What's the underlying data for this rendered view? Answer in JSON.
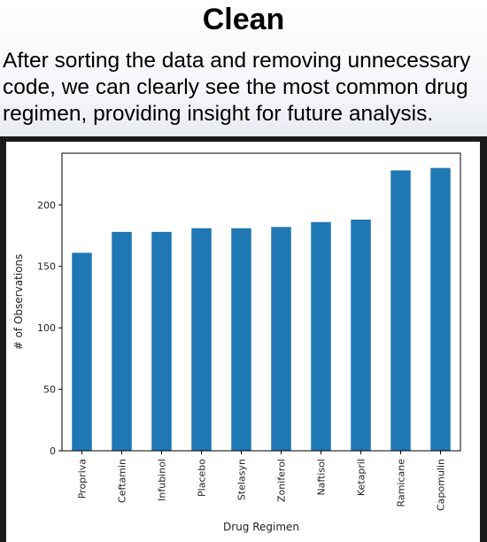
{
  "page": {
    "title": "Clean",
    "description": "After sorting the data and removing unnecessary code, we can clearly see the most common drug regimen, providing insight for future analysis."
  },
  "colors": {
    "bar": "#1f77b4",
    "axis": "#000000",
    "frame": "#1a1a1a"
  },
  "chart_data": {
    "type": "bar",
    "categories": [
      "Propriva",
      "Ceftamin",
      "Infubinol",
      "Placebo",
      "Stelasyn",
      "Zoniferol",
      "Naftisol",
      "Ketapril",
      "Ramicane",
      "Capomulin"
    ],
    "values": [
      161,
      178,
      178,
      181,
      181,
      182,
      186,
      188,
      228,
      230
    ],
    "title": "",
    "xlabel": "Drug Regimen",
    "ylabel": "# of Observations",
    "ylim": [
      0,
      242
    ],
    "yticks": [
      0,
      50,
      100,
      150,
      200
    ],
    "grid": false,
    "legend": "none"
  }
}
